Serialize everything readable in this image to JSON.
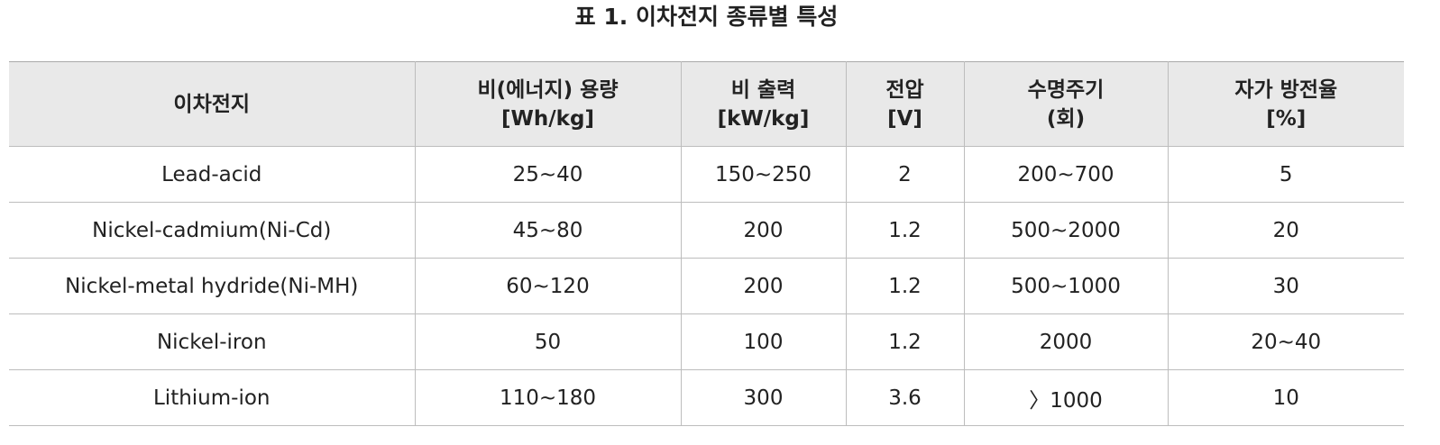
{
  "title": "표 1. 이차전지 종류별 특성",
  "table": {
    "header": [
      [
        "이차전지"
      ],
      [
        "비(에너지) 용량",
        "[Wh/kg]"
      ],
      [
        "비 출력",
        "[kW/kg]"
      ],
      [
        "전압",
        "[V]"
      ],
      [
        "수명주기",
        "(회)"
      ],
      [
        "자가 방전율",
        "[%]"
      ]
    ],
    "rows": [
      [
        "Lead-acid",
        "25~40",
        "150~250",
        "2",
        "200~700",
        "5"
      ],
      [
        "Nickel-cadmium(Ni-Cd)",
        "45~80",
        "200",
        "1.2",
        "500~2000",
        "20"
      ],
      [
        "Nickel-metal hydride(Ni-MH)",
        "60~120",
        "200",
        "1.2",
        "500~1000",
        "30"
      ],
      [
        "Nickel-iron",
        "50",
        "100",
        "1.2",
        "2000",
        "20~40"
      ],
      [
        "Lithium-ion",
        "110~180",
        "300",
        "3.6",
        "〉1000",
        "10"
      ]
    ]
  }
}
